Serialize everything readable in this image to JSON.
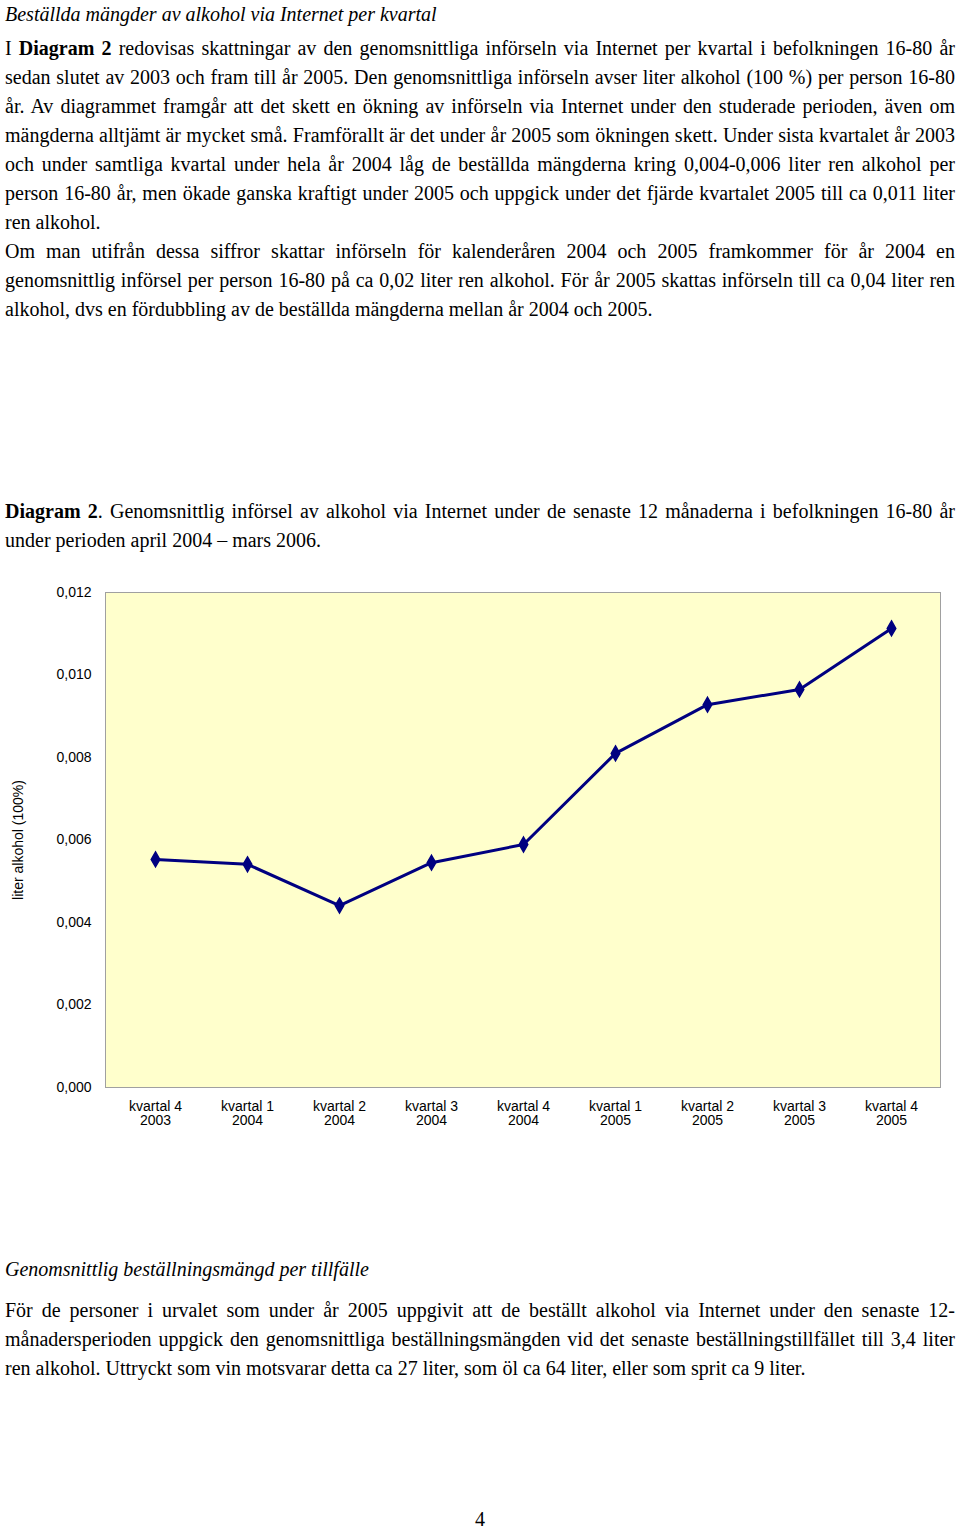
{
  "document": {
    "heading1": "Beställda mängder av alkohol via Internet per kvartal",
    "paragraphs1": [
      [
        {
          "text": "I "
        },
        {
          "text": "Diagram 2",
          "bold": true
        },
        {
          "text": " redovisas skattningar av den genomsnittliga införseln via Internet per kvartal i befolkningen 16-80 år sedan slutet av 2003 och fram till år 2005. Den genomsnittliga införseln avser liter alkohol (100 %) per person 16-80 år. Av diagrammet framgår att det skett en ökning av införseln via Internet under den studerade perioden, även om mängderna alltjämt är mycket små. Framförallt är det under år 2005 som ökningen skett. Under sista kvartalet år 2003 och under samtliga kvartal under hela år 2004 låg de beställda mängderna kring 0,004-0,006 liter ren alkohol per person 16-80 år, men ökade ganska kraftigt under 2005 och uppgick under det fjärde kvartalet 2005 till ca 0,011 liter ren alkohol."
        }
      ],
      [
        {
          "text": "Om man utifrån dessa siffror skattar införseln för kalenderåren 2004 och 2005 framkommer för år 2004 en genomsnittlig införsel per person 16-80 på ca 0,02 liter ren alkohol. För år 2005 skattas införseln till ca 0,04 liter ren alkohol, dvs en fördubbling av de beställda mängderna mellan år 2004 och 2005."
        }
      ]
    ],
    "caption": [
      {
        "text": "Diagram 2",
        "bold": true
      },
      {
        "text": ". Genomsnittlig införsel av alkohol via Internet under de senaste 12 månaderna i befolkningen 16-80 år under perioden april 2004 – mars 2006."
      }
    ],
    "heading2": "Genomsnittlig beställningsmängd per tillfälle",
    "paragraphs2": [
      [
        {
          "text": "För de personer i urvalet som under år 2005 uppgivit att de beställt alkohol via Internet under den senaste 12-månadersperioden uppgick den genomsnittliga beställningsmängden vid det senaste beställningstillfället till 3,4 liter ren alkohol. Uttryckt som vin motsvarar detta ca 27 liter, som öl ca 64 liter, eller som sprit ca 9 liter."
        }
      ]
    ],
    "page_number": "4"
  },
  "chart_data": {
    "type": "line",
    "y_label": "liter alkohol (100%)",
    "categories": [
      "kvartal 4\n2003",
      "kvartal 1\n2004",
      "kvartal 2\n2004",
      "kvartal 3\n2004",
      "kvartal 4\n2004",
      "kvartal 1\n2005",
      "kvartal 2\n2005",
      "kvartal 3\n2005",
      "kvartal 4\n2005"
    ],
    "values": [
      0.00553,
      0.00541,
      0.00441,
      0.00545,
      0.00589,
      0.0081,
      0.00928,
      0.00965,
      0.01113
    ],
    "color": "#000080",
    "marker": "diamond",
    "ylim": [
      0,
      0.012
    ],
    "yticks": [
      {
        "value": 0,
        "label": "0,000"
      },
      {
        "value": 0.002,
        "label": "0,002"
      },
      {
        "value": 0.004,
        "label": "0,004"
      },
      {
        "value": 0.006,
        "label": "0,006"
      },
      {
        "value": 0.008,
        "label": "0,008"
      },
      {
        "value": 0.01,
        "label": "0,010"
      },
      {
        "value": 0.012,
        "label": "0,012"
      }
    ],
    "grid": false
  }
}
